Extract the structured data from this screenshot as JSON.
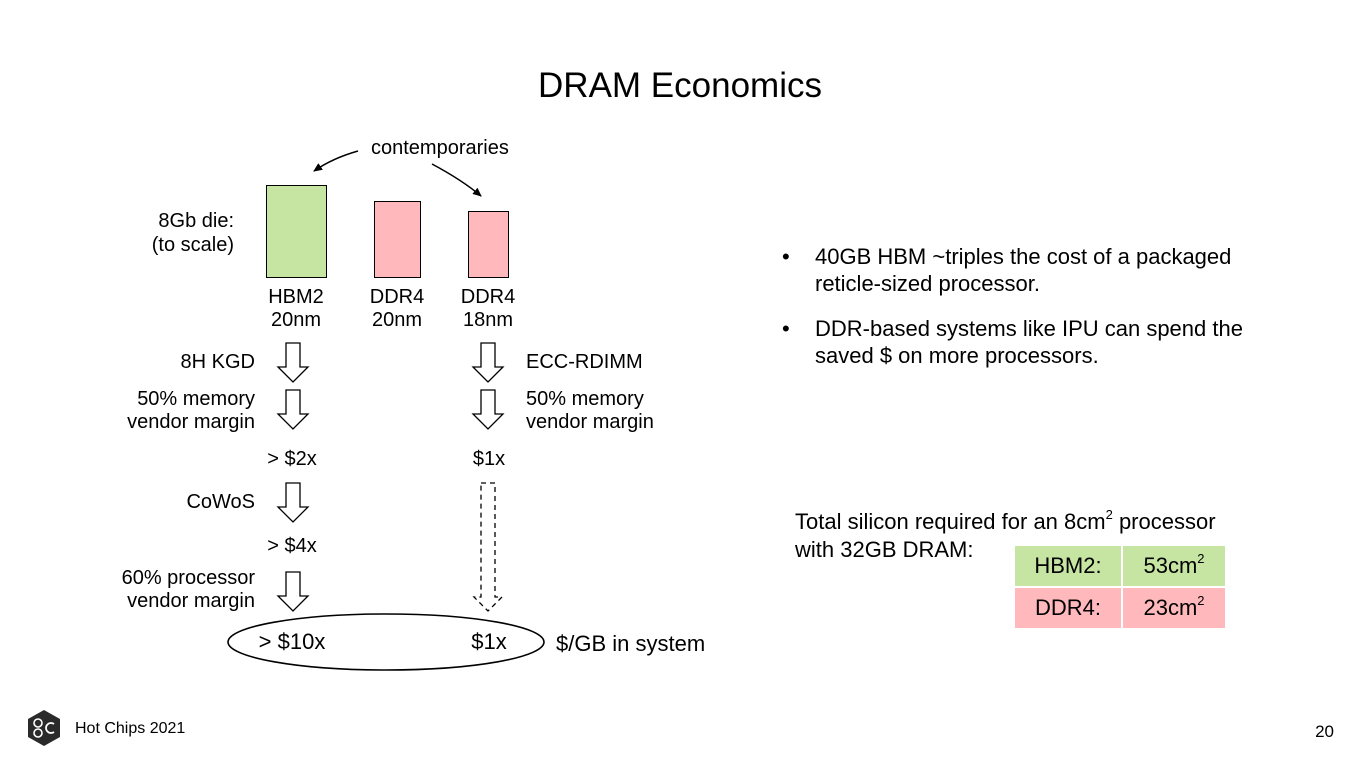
{
  "slide": {
    "title": "DRAM Economics",
    "footer": {
      "event": "Hot Chips 2021",
      "page_number": "20"
    }
  },
  "diagram": {
    "contemporaries_label": "contemporaries",
    "die_label_line1": "8Gb die:",
    "die_label_line2": "(to scale)",
    "dies": [
      {
        "name": "HBM2",
        "node": "20nm",
        "color": "#c6e5a3"
      },
      {
        "name": "DDR4",
        "node": "20nm",
        "color": "#ffb9bc"
      },
      {
        "name": "DDR4",
        "node": "18nm",
        "color": "#ffb9bc"
      }
    ],
    "hbm_steps": {
      "kgd": "8H KGD",
      "margin_line1": "50% memory",
      "margin_line2": "vendor margin",
      "cost1": "> $2x",
      "cowos": "CoWoS",
      "cost2": "> $4x",
      "proc_margin_line1": "60% processor",
      "proc_margin_line2": "vendor margin"
    },
    "ddr_steps": {
      "rdimm": "ECC-RDIMM",
      "margin_line1": "50% memory",
      "margin_line2": "vendor margin",
      "cost1": "$1x"
    },
    "result": {
      "hbm": "> $10x",
      "ddr": "$1x",
      "unit": "$/GB in system"
    }
  },
  "bullets": [
    "40GB HBM ~triples the cost of a packaged reticle-sized processor.",
    "DDR-based systems like IPU can spend the saved $ on more processors."
  ],
  "silicon": {
    "line1_prefix": "Total silicon required for an 8cm",
    "line1_sup": "2",
    "line1_suffix": " processor",
    "line2": "with 32GB DRAM:",
    "rows": [
      {
        "label": "HBM2:",
        "value": "53cm",
        "sup": "2",
        "color": "#c6e5a3"
      },
      {
        "label": "DDR4:",
        "value": "23cm",
        "sup": "2",
        "color": "#ffb9bc"
      }
    ]
  }
}
